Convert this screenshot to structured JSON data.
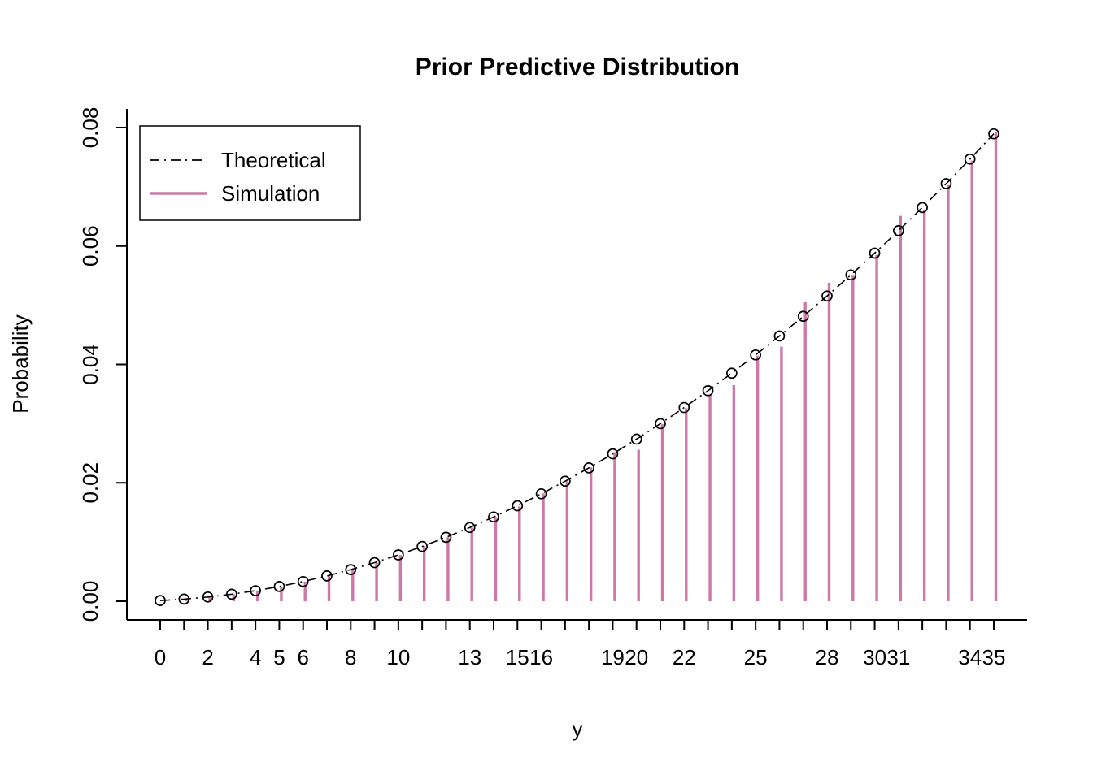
{
  "chart_data": {
    "type": "line",
    "title": "Prior Predictive Distribution",
    "xlabel": "y",
    "ylabel": "Probability",
    "xlim": [
      0,
      35
    ],
    "ylim": [
      0,
      0.08
    ],
    "grid": false,
    "legend_position": "top-left",
    "x": [
      0,
      1,
      2,
      3,
      4,
      5,
      6,
      7,
      8,
      9,
      10,
      11,
      12,
      13,
      14,
      15,
      16,
      17,
      18,
      19,
      20,
      21,
      22,
      23,
      24,
      25,
      26,
      27,
      28,
      29,
      30,
      31,
      32,
      33,
      34,
      35
    ],
    "x_ticks_shown": [
      0,
      2,
      4,
      5,
      6,
      8,
      10,
      13,
      15,
      16,
      19,
      20,
      22,
      25,
      28,
      30,
      31,
      34,
      35
    ],
    "y_ticks": [
      "0.00",
      "0.02",
      "0.04",
      "0.06",
      "0.08"
    ],
    "series": [
      {
        "name": "Theoretical",
        "style": "dash-dot line with open circle markers",
        "color": "#000000",
        "values": [
          0.000119,
          0.000356,
          0.000711,
          0.001185,
          0.001778,
          0.002489,
          0.003319,
          0.004267,
          0.005334,
          0.00652,
          0.007824,
          0.009246,
          0.010787,
          0.012447,
          0.014225,
          0.016121,
          0.018137,
          0.02027,
          0.022522,
          0.024893,
          0.027382,
          0.02999,
          0.032717,
          0.035562,
          0.038525,
          0.041607,
          0.044808,
          0.048127,
          0.051565,
          0.055121,
          0.058796,
          0.062589,
          0.066501,
          0.070531,
          0.07468,
          0.078948
        ]
      },
      {
        "name": "Simulation",
        "style": "vertical spikes from zero",
        "color": "#CC79A7",
        "values": [
          0.0001,
          0.00034,
          0.0007,
          0.0012,
          0.0018,
          0.00245,
          0.0033,
          0.0043,
          0.00535,
          0.0065,
          0.0078,
          0.0093,
          0.0108,
          0.0124,
          0.0142,
          0.016,
          0.0182,
          0.0203,
          0.0226,
          0.0252,
          0.0256,
          0.0299,
          0.0326,
          0.0348,
          0.0365,
          0.0415,
          0.043,
          0.0505,
          0.0538,
          0.055,
          0.0585,
          0.0651,
          0.066,
          0.0703,
          0.0744,
          0.0792
        ]
      }
    ],
    "legend": [
      {
        "label": "Theoretical"
      },
      {
        "label": "Simulation"
      }
    ]
  }
}
